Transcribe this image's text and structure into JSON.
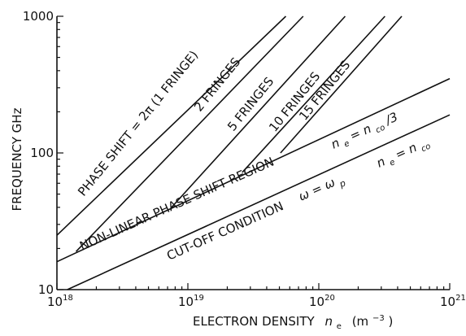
{
  "chart_data": {
    "type": "line",
    "x_scale": "log",
    "y_scale": "log",
    "xlim": [
      1e+18,
      1e+21
    ],
    "ylim": [
      10,
      1000
    ],
    "grid": false,
    "xlabel": {
      "text": "ELECTRON DENSITY",
      "symbol": "n",
      "symbol_sub": "e",
      "unit_open": "(m",
      "unit_exp": "−3",
      "unit_close": ")"
    },
    "ylabel": "FREQUENCY  GHz",
    "x_ticks": [
      {
        "value": 1e+18,
        "base": "10",
        "exp": "18"
      },
      {
        "value": 1e+19,
        "base": "10",
        "exp": "19"
      },
      {
        "value": 1e+20,
        "base": "10",
        "exp": "20"
      },
      {
        "value": 1e+21,
        "base": "10",
        "exp": "21"
      }
    ],
    "y_ticks": [
      {
        "value": 10,
        "label": "10"
      },
      {
        "value": 100,
        "label": "100"
      },
      {
        "value": 1000,
        "label": "1000"
      }
    ],
    "series": [
      {
        "name": "CUT-OFF CONDITION",
        "points": [
          [
            1.2e+18,
            10
          ],
          [
            1e+21,
            190
          ]
        ]
      },
      {
        "name": "n_e = n_co/3",
        "points": [
          [
            1e+18,
            16
          ],
          [
            1e+21,
            350
          ]
        ]
      },
      {
        "name": "PHASE SHIFT = 2π (1 FRINGE)",
        "points": [
          [
            1e+18,
            25
          ],
          [
            5.6e+19,
            1000
          ]
        ]
      },
      {
        "name": "2 FRINGES",
        "points": [
          [
            1.4e+18,
            19
          ],
          [
            7.6e+19,
            1000
          ]
        ]
      },
      {
        "name": "5 FRINGES",
        "points": [
          [
            7.5e+18,
            40
          ],
          [
            1.59e+20,
            1000
          ]
        ]
      },
      {
        "name": "10 FRINGES",
        "points": [
          [
            2.6e+19,
            72
          ],
          [
            3.2e+20,
            1000
          ]
        ]
      },
      {
        "name": "15 FRINGES",
        "points": [
          [
            5.1e+19,
            100
          ],
          [
            4.3e+20,
            1000
          ]
        ]
      }
    ],
    "annotations": {
      "phase_shift": "PHASE SHIFT = 2π (1 FRINGE)",
      "two_fringes": "2 FRINGES",
      "five_fringes": "5 FRINGES",
      "ten_fringes": "10 FRINGES",
      "fifteen_fringes": "15 FRINGES",
      "nonlinear_region": "NON-LINEAR PHASE SHIFT REGION",
      "cutoff": "CUT-OFF CONDITION",
      "omega_eq": "ω = ω",
      "omega_sub": "p",
      "ne_left": "n",
      "ne_left_sub": "e",
      "ne_eq_co3": " = n",
      "co_sub": "co",
      "over3": "/3",
      "ne_eq_co": " = n"
    }
  }
}
